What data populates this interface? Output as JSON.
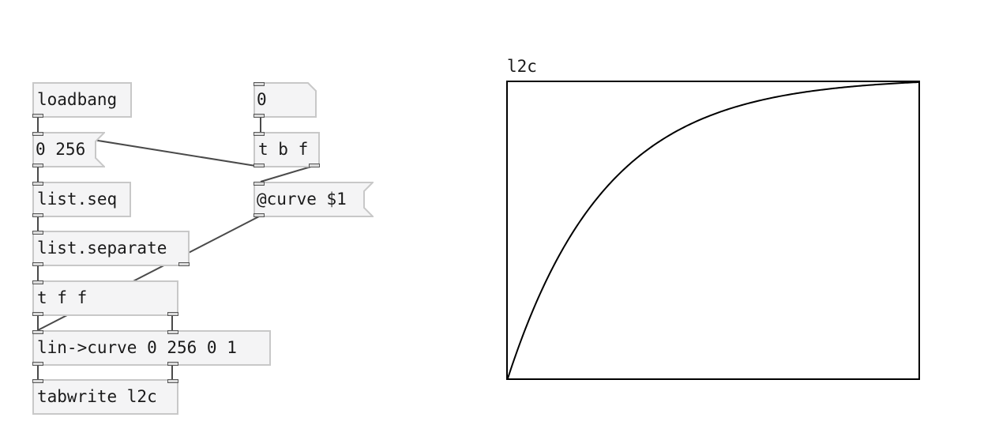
{
  "patch": {
    "objects": {
      "loadbang": "loadbang",
      "list_seq": "list.seq",
      "list_separate": "list.separate",
      "trigger_ff": "t f f",
      "trigger_bf": "t b f",
      "lin_curve": "lin->curve 0 256 0 1",
      "tabwrite": "tabwrite l2c"
    },
    "messages": {
      "range": "0 256",
      "curve": "@curve $1"
    },
    "number_box": {
      "value": "0"
    }
  },
  "array": {
    "name": "l2c",
    "curve_param": 0,
    "y_range": [
      0,
      1
    ],
    "x_range": [
      0,
      256
    ]
  }
}
